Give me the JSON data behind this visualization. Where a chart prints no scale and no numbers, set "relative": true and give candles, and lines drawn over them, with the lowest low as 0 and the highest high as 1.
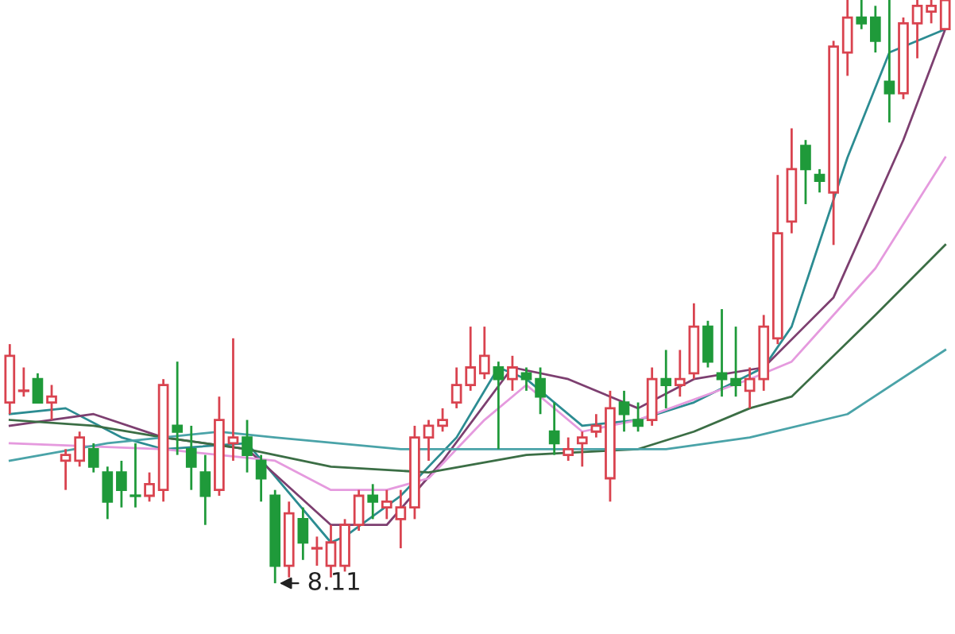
{
  "chart_data": {
    "type": "candlestick",
    "relative": true,
    "legend": false,
    "categories": [
      null,
      null,
      null,
      null,
      null,
      null,
      null,
      null,
      null,
      null,
      null,
      null,
      null,
      null,
      null,
      null,
      null,
      null,
      null,
      null,
      null,
      null,
      null,
      null,
      null,
      null,
      null,
      null,
      null,
      null,
      null,
      null,
      null,
      null,
      null,
      null,
      null,
      null,
      null,
      null,
      null,
      null,
      null,
      null,
      null,
      null,
      null,
      null,
      null,
      null,
      null,
      null,
      null,
      null,
      null,
      null,
      null,
      null,
      null,
      null,
      null,
      null,
      null,
      null,
      null,
      null,
      null,
      null
    ],
    "ohlc": [
      [
        0.31,
        0.41,
        0.29,
        0.39
      ],
      [
        0.33,
        0.37,
        0.32,
        0.33
      ],
      [
        0.35,
        0.36,
        0.31,
        0.31
      ],
      [
        0.31,
        0.34,
        0.28,
        0.32
      ],
      [
        0.21,
        0.23,
        0.16,
        0.22
      ],
      [
        0.21,
        0.26,
        0.2,
        0.25
      ],
      [
        0.23,
        0.24,
        0.19,
        0.2
      ],
      [
        0.19,
        0.2,
        0.11,
        0.14
      ],
      [
        0.19,
        0.21,
        0.13,
        0.16
      ],
      [
        0.15,
        0.24,
        0.13,
        0.15
      ],
      [
        0.15,
        0.19,
        0.14,
        0.17
      ],
      [
        0.16,
        0.35,
        0.14,
        0.34
      ],
      [
        0.27,
        0.38,
        0.22,
        0.26
      ],
      [
        0.23,
        0.27,
        0.16,
        0.2
      ],
      [
        0.19,
        0.22,
        0.1,
        0.15
      ],
      [
        0.16,
        0.32,
        0.15,
        0.28
      ],
      [
        0.24,
        0.42,
        0.21,
        0.25
      ],
      [
        0.25,
        0.28,
        0.19,
        0.22
      ],
      [
        0.21,
        0.22,
        0.14,
        0.18
      ],
      [
        0.15,
        0.16,
        0.0,
        0.03
      ],
      [
        0.03,
        0.14,
        0.01,
        0.12
      ],
      [
        0.11,
        0.13,
        0.04,
        0.07
      ],
      [
        0.06,
        0.08,
        0.03,
        0.06
      ],
      [
        0.03,
        0.1,
        0.01,
        0.07
      ],
      [
        0.03,
        0.11,
        0.02,
        0.1
      ],
      [
        0.1,
        0.16,
        0.09,
        0.15
      ],
      [
        0.15,
        0.17,
        0.11,
        0.14
      ],
      [
        0.13,
        0.16,
        0.11,
        0.14
      ],
      [
        0.11,
        0.16,
        0.06,
        0.13
      ],
      [
        0.13,
        0.27,
        0.11,
        0.25
      ],
      [
        0.25,
        0.28,
        0.21,
        0.27
      ],
      [
        0.27,
        0.3,
        0.26,
        0.28
      ],
      [
        0.31,
        0.37,
        0.3,
        0.34
      ],
      [
        0.34,
        0.44,
        0.33,
        0.37
      ],
      [
        0.36,
        0.44,
        0.35,
        0.39
      ],
      [
        0.37,
        0.38,
        0.23,
        0.35
      ],
      [
        0.35,
        0.39,
        0.33,
        0.37
      ],
      [
        0.36,
        0.37,
        0.33,
        0.35
      ],
      [
        0.35,
        0.37,
        0.29,
        0.32
      ],
      [
        0.26,
        0.31,
        0.22,
        0.24
      ],
      [
        0.22,
        0.25,
        0.21,
        0.23
      ],
      [
        0.24,
        0.26,
        0.2,
        0.25
      ],
      [
        0.26,
        0.29,
        0.25,
        0.27
      ],
      [
        0.18,
        0.33,
        0.14,
        0.3
      ],
      [
        0.31,
        0.33,
        0.26,
        0.29
      ],
      [
        0.28,
        0.31,
        0.26,
        0.27
      ],
      [
        0.28,
        0.37,
        0.27,
        0.35
      ],
      [
        0.35,
        0.4,
        0.3,
        0.34
      ],
      [
        0.34,
        0.4,
        0.32,
        0.35
      ],
      [
        0.36,
        0.48,
        0.35,
        0.44
      ],
      [
        0.44,
        0.45,
        0.37,
        0.38
      ],
      [
        0.36,
        0.47,
        0.32,
        0.35
      ],
      [
        0.35,
        0.44,
        0.32,
        0.34
      ],
      [
        0.33,
        0.37,
        0.3,
        0.35
      ],
      [
        0.35,
        0.46,
        0.33,
        0.44
      ],
      [
        0.42,
        0.7,
        0.41,
        0.6
      ],
      [
        0.62,
        0.78,
        0.6,
        0.71
      ],
      [
        0.75,
        0.76,
        0.65,
        0.71
      ],
      [
        0.7,
        0.71,
        0.67,
        0.69
      ],
      [
        0.67,
        0.93,
        0.58,
        0.92
      ],
      [
        0.91,
        1.0,
        0.87,
        0.97
      ],
      [
        0.97,
        1.0,
        0.95,
        0.96
      ],
      [
        0.97,
        0.99,
        0.91,
        0.93
      ],
      [
        0.86,
        1.0,
        0.79,
        0.84
      ],
      [
        0.84,
        0.97,
        0.83,
        0.96
      ],
      [
        0.96,
        1.0,
        0.9,
        0.99
      ],
      [
        0.98,
        1.0,
        0.96,
        0.99
      ],
      [
        0.95,
        1.0,
        0.95,
        1.0
      ]
    ],
    "colors": [
      "#d9434f",
      "#d9434f",
      "#1f9a3a",
      "#d9434f",
      "#d9434f",
      "#d9434f",
      "#1f9a3a",
      "#1f9a3a",
      "#1f9a3a",
      "#1f9a3a",
      "#d9434f",
      "#d9434f",
      "#1f9a3a",
      "#1f9a3a",
      "#1f9a3a",
      "#d9434f",
      "#d9434f",
      "#1f9a3a",
      "#1f9a3a",
      "#1f9a3a",
      "#d9434f",
      "#1f9a3a",
      "#d9434f",
      "#d9434f",
      "#d9434f",
      "#d9434f",
      "#1f9a3a",
      "#d9434f",
      "#d9434f",
      "#d9434f",
      "#d9434f",
      "#d9434f",
      "#d9434f",
      "#d9434f",
      "#d9434f",
      "#1f9a3a",
      "#d9434f",
      "#1f9a3a",
      "#1f9a3a",
      "#1f9a3a",
      "#d9434f",
      "#d9434f",
      "#d9434f",
      "#d9434f",
      "#1f9a3a",
      "#1f9a3a",
      "#d9434f",
      "#1f9a3a",
      "#d9434f",
      "#d9434f",
      "#1f9a3a",
      "#1f9a3a",
      "#1f9a3a",
      "#d9434f",
      "#d9434f",
      "#d9434f",
      "#d9434f",
      "#1f9a3a",
      "#1f9a3a",
      "#d9434f",
      "#d9434f",
      "#1f9a3a",
      "#1f9a3a",
      "#1f9a3a",
      "#d9434f",
      "#d9434f",
      "#d9434f",
      "#d9434f"
    ],
    "series": [
      {
        "type": "line",
        "color": "#2c8c92",
        "values": [
          0.29,
          null,
          null,
          null,
          0.3,
          null,
          null,
          null,
          0.25,
          null,
          null,
          0.23,
          null,
          null,
          null,
          null,
          null,
          0.24,
          null,
          null,
          null,
          null,
          null,
          0.07,
          0.08,
          null,
          null,
          null,
          0.15,
          null,
          null,
          null,
          0.25,
          null,
          null,
          0.37,
          null,
          0.35,
          null,
          null,
          null,
          0.27,
          null,
          null,
          null,
          0.28,
          null,
          null,
          null,
          0.31,
          null,
          null,
          null,
          null,
          0.37,
          null,
          0.44,
          null,
          null,
          null,
          0.73,
          null,
          null,
          0.91,
          null,
          null,
          null,
          0.95
        ]
      },
      {
        "type": "line",
        "color": "#7d3f70",
        "values": [
          0.27,
          null,
          null,
          null,
          null,
          null,
          0.29,
          null,
          null,
          null,
          null,
          0.25,
          null,
          null,
          null,
          null,
          null,
          0.23,
          null,
          null,
          null,
          null,
          null,
          0.1,
          null,
          null,
          null,
          0.1,
          null,
          null,
          null,
          0.21,
          null,
          null,
          null,
          null,
          0.37,
          null,
          null,
          null,
          0.35,
          null,
          null,
          null,
          null,
          0.3,
          null,
          null,
          null,
          0.35,
          null,
          null,
          null,
          null,
          0.37,
          null,
          null,
          null,
          null,
          0.49,
          null,
          null,
          null,
          null,
          0.76,
          null,
          null,
          0.95
        ]
      },
      {
        "type": "line",
        "color": "#e59ade",
        "values": [
          0.24,
          null,
          null,
          null,
          null,
          null,
          null,
          null,
          null,
          null,
          null,
          0.23,
          null,
          null,
          null,
          null,
          null,
          null,
          null,
          0.21,
          null,
          null,
          null,
          0.16,
          null,
          null,
          null,
          0.16,
          null,
          null,
          0.18,
          null,
          null,
          null,
          0.28,
          null,
          null,
          0.34,
          null,
          null,
          null,
          0.26,
          null,
          null,
          null,
          0.28,
          null,
          null,
          null,
          null,
          null,
          null,
          null,
          0.35,
          null,
          null,
          0.38,
          null,
          null,
          null,
          null,
          null,
          0.54,
          null,
          null,
          null,
          null,
          0.73
        ]
      },
      {
        "type": "line",
        "color": "#3b6e45",
        "values": [
          0.28,
          null,
          null,
          null,
          null,
          null,
          0.27,
          null,
          null,
          null,
          null,
          0.25,
          null,
          null,
          null,
          null,
          null,
          0.23,
          null,
          null,
          null,
          null,
          null,
          0.2,
          null,
          null,
          null,
          null,
          null,
          null,
          0.19,
          null,
          null,
          null,
          null,
          null,
          null,
          0.22,
          null,
          null,
          null,
          null,
          null,
          null,
          null,
          0.23,
          null,
          null,
          null,
          0.26,
          null,
          null,
          null,
          0.3,
          null,
          null,
          0.32,
          null,
          null,
          null,
          null,
          null,
          0.46,
          null,
          null,
          null,
          null,
          0.58
        ]
      },
      {
        "type": "line",
        "color": "#4aa3a8",
        "values": [
          0.21,
          null,
          null,
          null,
          null,
          null,
          null,
          0.24,
          null,
          null,
          null,
          null,
          null,
          null,
          null,
          0.26,
          null,
          null,
          null,
          0.25,
          null,
          null,
          null,
          null,
          null,
          null,
          null,
          null,
          0.23,
          null,
          null,
          null,
          null,
          null,
          null,
          null,
          null,
          null,
          null,
          0.23,
          null,
          null,
          null,
          null,
          null,
          null,
          null,
          0.23,
          null,
          null,
          null,
          null,
          null,
          0.25,
          null,
          null,
          null,
          null,
          null,
          null,
          0.29,
          null,
          null,
          null,
          null,
          null,
          null,
          0.4
        ]
      }
    ],
    "annotations": [
      {
        "text": "8.11",
        "y": 0
      }
    ]
  }
}
